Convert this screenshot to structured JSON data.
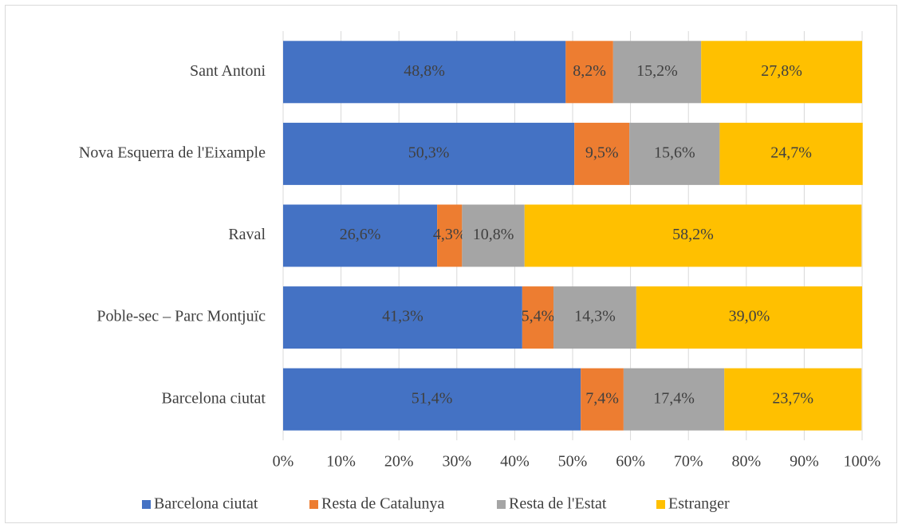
{
  "chart_data": {
    "type": "bar",
    "orientation": "horizontal",
    "stacked": true,
    "categories": [
      "Sant Antoni",
      "Nova Esquerra de l'Eixample",
      "Raval",
      "Poble-sec – Parc Montjuïc",
      "Barcelona ciutat"
    ],
    "series": [
      {
        "name": "Barcelona ciutat",
        "color": "#4472c4",
        "values": [
          48.8,
          50.3,
          26.6,
          41.3,
          51.4
        ],
        "value_labels": [
          "48,8%",
          "50,3%",
          "26,6%",
          "41,3%",
          "51,4%"
        ]
      },
      {
        "name": "Resta de Catalunya",
        "color": "#ed7d31",
        "values": [
          8.2,
          9.5,
          4.3,
          5.4,
          7.4
        ],
        "value_labels": [
          "8,2%",
          "9,5%",
          "4,3%",
          "5,4%",
          "7,4%"
        ]
      },
      {
        "name": "Resta de l'Estat",
        "color": "#a5a5a5",
        "values": [
          15.2,
          15.6,
          10.8,
          14.3,
          17.4
        ],
        "value_labels": [
          "15,2%",
          "15,6%",
          "10,8%",
          "14,3%",
          "17,4%"
        ]
      },
      {
        "name": "Estranger",
        "color": "#ffc000",
        "values": [
          27.8,
          24.7,
          58.2,
          39.0,
          23.7
        ],
        "value_labels": [
          "27,8%",
          "24,7%",
          "58,2%",
          "39,0%",
          "23,7%"
        ]
      }
    ],
    "xlim": [
      0,
      100
    ],
    "xticks": [
      {
        "value": 0,
        "label": "0%"
      },
      {
        "value": 10,
        "label": "10%"
      },
      {
        "value": 20,
        "label": "20%"
      },
      {
        "value": 30,
        "label": "30%"
      },
      {
        "value": 40,
        "label": "40%"
      },
      {
        "value": 50,
        "label": "50%"
      },
      {
        "value": 60,
        "label": "60%"
      },
      {
        "value": 70,
        "label": "70%"
      },
      {
        "value": 80,
        "label": "80%"
      },
      {
        "value": 90,
        "label": "90%"
      },
      {
        "value": 100,
        "label": "100%"
      }
    ],
    "grid": true,
    "legend": "bottom"
  }
}
